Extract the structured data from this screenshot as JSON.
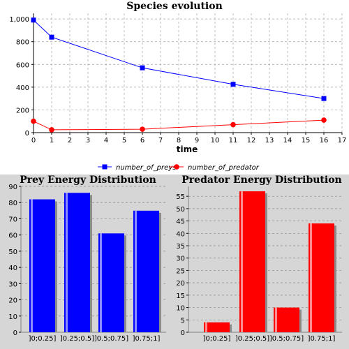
{
  "chart_data": [
    {
      "type": "line",
      "title": "Species evolution",
      "xlabel": "time",
      "ylabel": "",
      "xlim": [
        0,
        17
      ],
      "ylim": [
        0,
        1050
      ],
      "xticks": [
        0,
        1,
        2,
        3,
        4,
        5,
        6,
        7,
        8,
        9,
        10,
        11,
        12,
        13,
        14,
        15,
        16,
        17
      ],
      "yticks": [
        0,
        200,
        400,
        600,
        800,
        1000
      ],
      "ytick_labels": [
        "0",
        "200",
        "400",
        "600",
        "800",
        "1,000"
      ],
      "grid": true,
      "legend_position": "bottom",
      "series": [
        {
          "name": "number_of_preys",
          "color": "#0000ff",
          "marker": "square",
          "x": [
            0,
            1,
            6,
            11,
            16
          ],
          "y": [
            990,
            840,
            570,
            425,
            300
          ]
        },
        {
          "name": "number_of_predator",
          "color": "#ff0000",
          "marker": "circle",
          "x": [
            0,
            1,
            6,
            11,
            16
          ],
          "y": [
            100,
            25,
            30,
            70,
            110
          ]
        }
      ]
    },
    {
      "type": "bar",
      "title": "Prey Energy Distribution",
      "color": "#0000ff",
      "categories": [
        "]0;0.25]",
        "]0.25;0.5]",
        "]0.5;0.75]",
        "]0.75;1]"
      ],
      "values": [
        82,
        86,
        61,
        75
      ],
      "ylim": [
        0,
        90
      ],
      "yticks": [
        0,
        10,
        20,
        30,
        40,
        50,
        60,
        70,
        80,
        90
      ],
      "grid": true
    },
    {
      "type": "bar",
      "title": "Predator Energy Distribution",
      "color": "#ff0000",
      "categories": [
        "]0;0.25]",
        "]0.25;0.5]",
        "]0.5;0.75]",
        "]0.75;1]"
      ],
      "values": [
        4,
        57,
        10,
        44
      ],
      "ylim": [
        0,
        59
      ],
      "yticks": [
        0,
        5,
        10,
        15,
        20,
        25,
        30,
        35,
        40,
        45,
        50,
        55
      ],
      "grid": true
    }
  ],
  "colors": {
    "lower_background": "#d6d6d6",
    "plot_background": "#ffffff",
    "grid": "#a0a0a0"
  }
}
